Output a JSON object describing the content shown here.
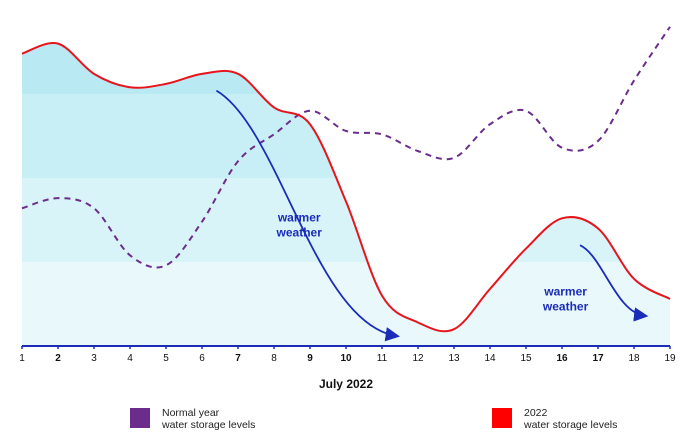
{
  "chart_data": {
    "type": "line",
    "title": "",
    "xlabel": "July 2022",
    "ylabel": "",
    "x_ticks": [
      "1",
      "2",
      "3",
      "4",
      "5",
      "6",
      "7",
      "8",
      "9",
      "10",
      "11",
      "12",
      "13",
      "14",
      "15",
      "16",
      "17",
      "18",
      "19"
    ],
    "bold_ticks": [
      "2",
      "7",
      "9",
      "10",
      "16",
      "17"
    ],
    "xlim": [
      1,
      19
    ],
    "ylim": [
      0,
      100
    ],
    "grid": false,
    "legend_position": "bottom",
    "series": [
      {
        "name": "Normal year water storage levels",
        "style": "dashed",
        "color": "#6b2c8c",
        "points": [
          [
            1,
            41
          ],
          [
            2,
            44
          ],
          [
            3,
            41
          ],
          [
            4,
            27
          ],
          [
            5,
            24
          ],
          [
            6,
            37
          ],
          [
            7,
            55
          ],
          [
            8,
            63
          ],
          [
            9,
            70
          ],
          [
            10,
            64
          ],
          [
            11,
            63
          ],
          [
            12,
            58
          ],
          [
            13,
            56
          ],
          [
            14,
            66
          ],
          [
            15,
            70
          ],
          [
            16,
            59
          ],
          [
            17,
            61
          ],
          [
            18,
            79
          ],
          [
            19,
            95
          ]
        ]
      },
      {
        "name": "2022 water storage levels",
        "style": "solid",
        "color": "#e8141c",
        "points": [
          [
            1,
            87
          ],
          [
            2,
            90
          ],
          [
            3,
            81
          ],
          [
            4,
            77
          ],
          [
            5,
            78
          ],
          [
            6,
            81
          ],
          [
            7,
            81
          ],
          [
            8,
            71
          ],
          [
            9,
            66
          ],
          [
            10,
            43
          ],
          [
            11,
            15
          ],
          [
            12,
            7
          ],
          [
            13,
            5
          ],
          [
            14,
            17
          ],
          [
            15,
            29
          ],
          [
            16,
            38
          ],
          [
            17,
            35
          ],
          [
            18,
            20
          ],
          [
            19,
            14
          ]
        ]
      }
    ],
    "annotations": [
      {
        "text": "warmer weather",
        "color": "#1a2cb8",
        "x": 8.7,
        "y": 37,
        "arrow_from": [
          6.4,
          76
        ],
        "arrow_to": [
          11.4,
          3
        ]
      },
      {
        "text": "warmer weather",
        "color": "#1a2cb8",
        "x": 16.1,
        "y": 15,
        "arrow_from": [
          16.5,
          30
        ],
        "arrow_to": [
          18.3,
          9
        ]
      }
    ],
    "bands": [
      "#b9e9f2",
      "#c9eff6",
      "#d9f4f9",
      "#e8f8fb"
    ]
  },
  "legend": [
    {
      "line1": "Normal year",
      "line2": "water storage levels",
      "color": "#6b2c8c"
    },
    {
      "line1": "2022",
      "line2": "water storage levels",
      "color": "#ff0000"
    }
  ],
  "axis_color": "#1a2cb8"
}
